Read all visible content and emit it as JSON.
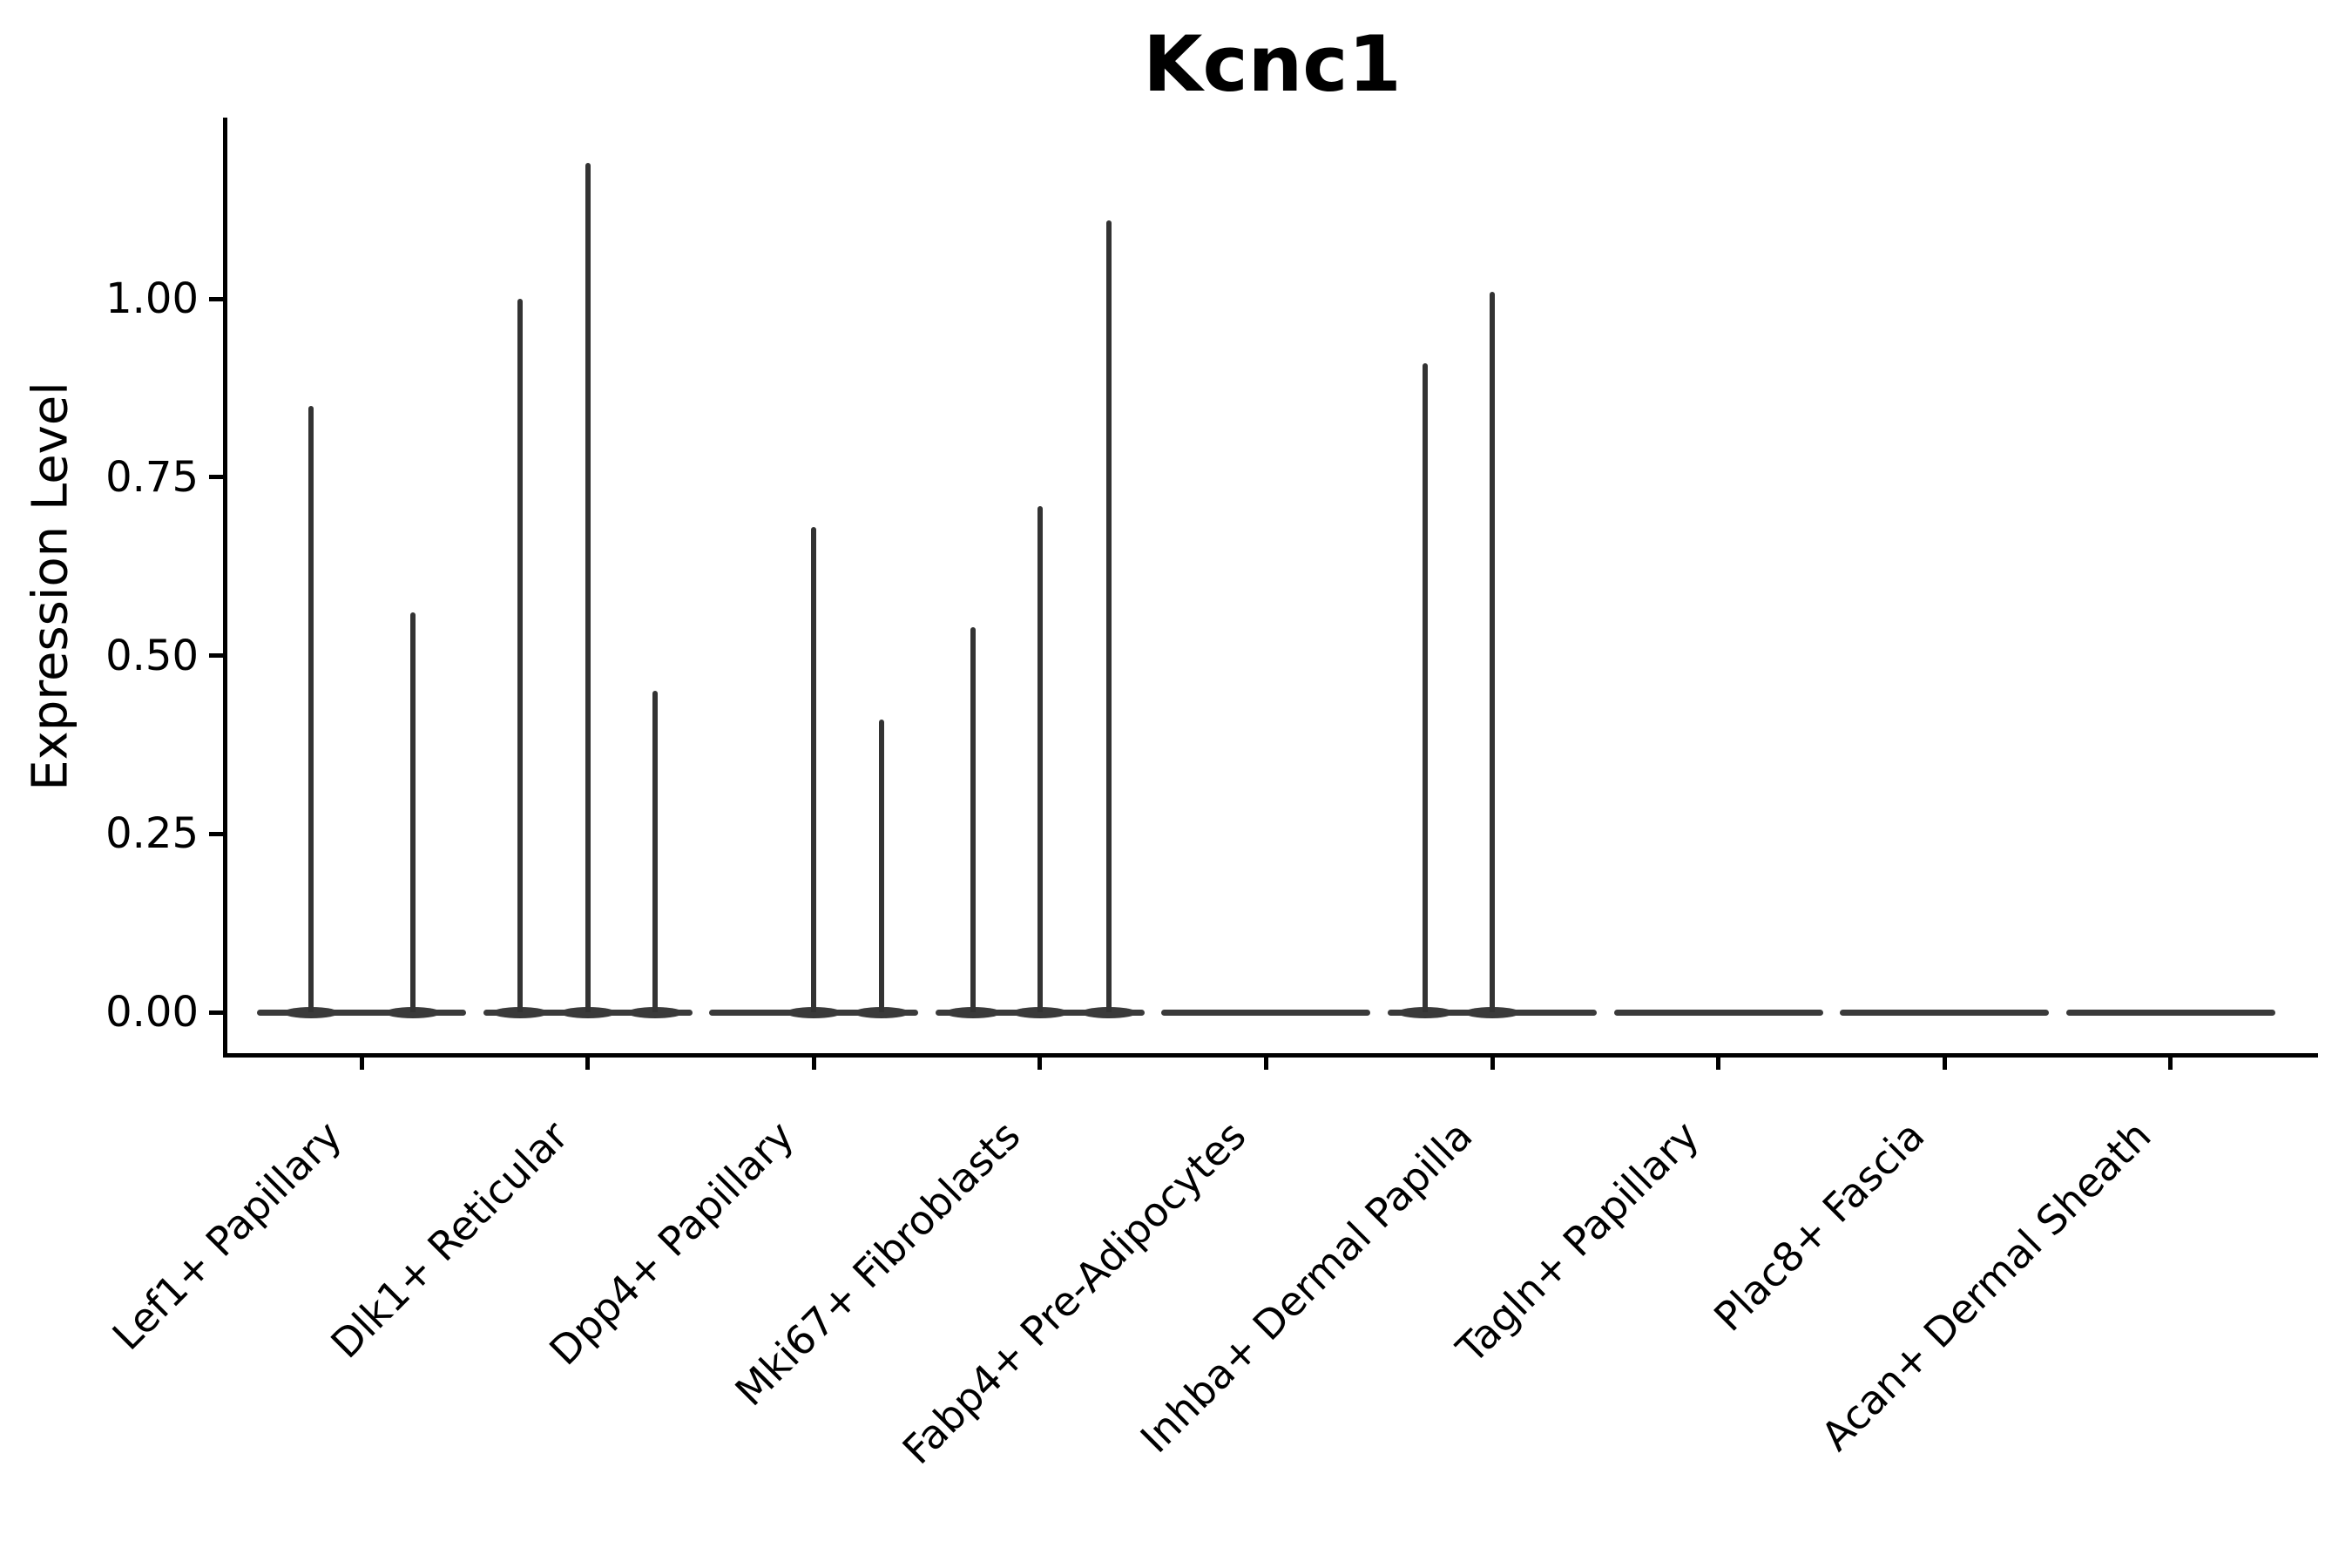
{
  "title": "Kcnc1",
  "y_axis": {
    "label": "Expression Level",
    "tick_labels": [
      "1.00",
      "0.75",
      "0.50",
      "0.25",
      "0.00"
    ],
    "tick_values": [
      1.0,
      0.75,
      0.5,
      0.25,
      0.0
    ]
  },
  "colors": {
    "background": "#ffffff",
    "axis": "#000000",
    "text": "#000000",
    "violin": "#3a3a3a"
  },
  "chart_data": {
    "type": "violin",
    "title": "Kcnc1",
    "xlabel": "",
    "ylabel": "Expression Level",
    "ylim": [
      0,
      1.25
    ],
    "yticks": [
      0,
      0.25,
      0.5,
      0.75,
      1.0
    ],
    "grid": false,
    "legend": false,
    "x_tick_rotation_deg": 45,
    "categories": [
      "Lef1+ Papillary",
      "Dlk1+ Reticular",
      "Dpp4+ Papillary",
      "Mki67+ Fibroblasts",
      "Fabp4+ Pre-Adipocytes",
      "Inhba+ Dermal Papilla",
      "Tagln+ Papillary",
      "Plac8+ Fascia",
      "Acan+ Dermal Sheath"
    ],
    "violins": [
      {
        "category": "Lef1+ Papillary",
        "baseline_value": 0,
        "spikes": [
          {
            "offset": -0.223,
            "value": 0.85
          },
          {
            "offset": 0.227,
            "value": 0.56
          }
        ]
      },
      {
        "category": "Dlk1+ Reticular",
        "baseline_value": 0,
        "spikes": [
          {
            "offset": -0.3,
            "value": 1.0
          },
          {
            "offset": 0.0,
            "value": 1.19
          },
          {
            "offset": 0.3,
            "value": 0.45
          }
        ]
      },
      {
        "category": "Dpp4+ Papillary",
        "baseline_value": 0,
        "spikes": [
          {
            "offset": 0.0,
            "value": 0.68
          },
          {
            "offset": 0.3,
            "value": 0.41
          }
        ]
      },
      {
        "category": "Mki67+ Fibroblasts",
        "baseline_value": 0,
        "spikes": [
          {
            "offset": -0.297,
            "value": 0.54
          },
          {
            "offset": 0.0,
            "value": 0.71
          },
          {
            "offset": 0.304,
            "value": 1.11
          }
        ]
      },
      {
        "category": "Fabp4+ Pre-Adipocytes",
        "baseline_value": 0,
        "spikes": []
      },
      {
        "category": "Inhba+ Dermal Papilla",
        "baseline_value": 0,
        "spikes": [
          {
            "offset": -0.297,
            "value": 0.91
          },
          {
            "offset": 0.0,
            "value": 1.01
          }
        ]
      },
      {
        "category": "Tagln+ Papillary",
        "baseline_value": 0,
        "spikes": []
      },
      {
        "category": "Plac8+ Fascia",
        "baseline_value": 0,
        "spikes": []
      },
      {
        "category": "Acan+ Dermal Sheath",
        "baseline_value": 0,
        "spikes": []
      }
    ]
  }
}
